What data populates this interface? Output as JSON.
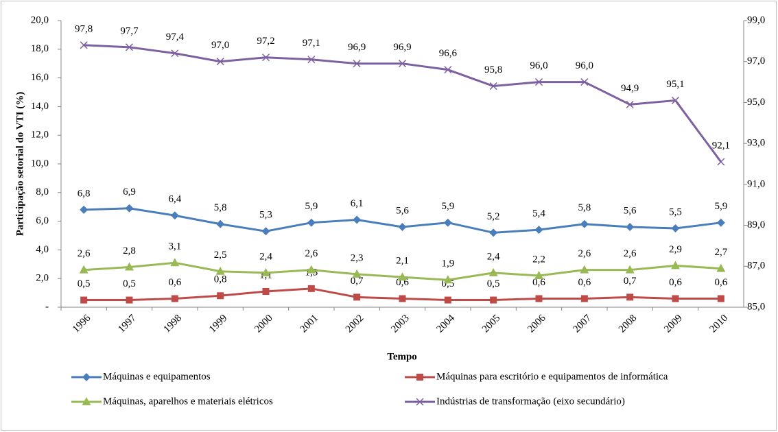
{
  "chart_data": {
    "type": "line",
    "ylabel": "Participação setorial do VTI (%)",
    "xlabel": "Tempo",
    "categories": [
      "1996",
      "1997",
      "1998",
      "1999",
      "2000",
      "2001",
      "2002",
      "2003",
      "2004",
      "2005",
      "2006",
      "2007",
      "2008",
      "2009",
      "2010"
    ],
    "ylim": [
      0,
      20
    ],
    "yticks": [
      {
        "value": 0,
        "label": "-"
      },
      {
        "value": 2,
        "label": "2,0"
      },
      {
        "value": 4,
        "label": "4,0"
      },
      {
        "value": 6,
        "label": "6,0"
      },
      {
        "value": 8,
        "label": "8,0"
      },
      {
        "value": 10,
        "label": "10,0"
      },
      {
        "value": 12,
        "label": "12,0"
      },
      {
        "value": 14,
        "label": "14,0"
      },
      {
        "value": 16,
        "label": "16,0"
      },
      {
        "value": 18,
        "label": "18,0"
      },
      {
        "value": 20,
        "label": "20,0"
      }
    ],
    "y2lim": [
      85,
      99
    ],
    "y2ticks": [
      {
        "value": 85,
        "label": "85,0"
      },
      {
        "value": 87,
        "label": "87,0"
      },
      {
        "value": 89,
        "label": "89,0"
      },
      {
        "value": 91,
        "label": "91,0"
      },
      {
        "value": 93,
        "label": "93,0"
      },
      {
        "value": 95,
        "label": "95,0"
      },
      {
        "value": 97,
        "label": "97,0"
      },
      {
        "value": 99,
        "label": "99,0"
      }
    ],
    "legend": "bottom",
    "series": [
      {
        "name": "Máquinas e equipamentos",
        "color": "#4a7ebb",
        "marker": "diamond",
        "values": [
          6.8,
          6.9,
          6.4,
          5.8,
          5.3,
          5.9,
          6.1,
          5.6,
          5.9,
          5.2,
          5.4,
          5.8,
          5.6,
          5.5,
          5.9
        ],
        "value_labels": [
          "6,8",
          "6,9",
          "6,4",
          "5,8",
          "5,3",
          "5,9",
          "6,1",
          "5,6",
          "5,9",
          "5,2",
          "5,4",
          "5,8",
          "5,6",
          "5,5",
          "5,9"
        ]
      },
      {
        "name": "Máquinas para escritório e equipamentos de informática",
        "color": "#be4b48",
        "marker": "square",
        "values": [
          0.5,
          0.5,
          0.6,
          0.8,
          1.1,
          1.3,
          0.7,
          0.6,
          0.5,
          0.5,
          0.6,
          0.6,
          0.7,
          0.6,
          0.6
        ],
        "value_labels": [
          "0,5",
          "0,5",
          "0,6",
          "0,8",
          "1,1",
          "1,3",
          "0,7",
          "0,6",
          "0,5",
          "0,5",
          "0,6",
          "0,6",
          "0,7",
          "0,6",
          "0,6"
        ]
      },
      {
        "name": "Máquinas, aparelhos e materiais elétricos",
        "color": "#98b954",
        "marker": "triangle",
        "values": [
          2.6,
          2.8,
          3.1,
          2.5,
          2.4,
          2.6,
          2.3,
          2.1,
          1.9,
          2.4,
          2.2,
          2.6,
          2.6,
          2.9,
          2.7
        ],
        "value_labels": [
          "2,6",
          "2,8",
          "3,1",
          "2,5",
          "2,4",
          "2,6",
          "2,3",
          "2,1",
          "1,9",
          "2,4",
          "2,2",
          "2,6",
          "2,6",
          "2,9",
          "2,7"
        ]
      },
      {
        "name": "Indústrias de transformação (eixo secundário)",
        "color": "#7d60a0",
        "marker": "x",
        "axis": "y2",
        "values": [
          97.8,
          97.7,
          97.4,
          97.0,
          97.2,
          97.1,
          96.9,
          96.9,
          96.6,
          95.8,
          96.0,
          96.0,
          94.9,
          95.1,
          92.1
        ],
        "value_labels": [
          "97,8",
          "97,7",
          "97,4",
          "97,0",
          "97,2",
          "97,1",
          "96,9",
          "96,9",
          "96,6",
          "95,8",
          "96,0",
          "96,0",
          "94,9",
          "95,1",
          "92,1"
        ]
      }
    ]
  }
}
